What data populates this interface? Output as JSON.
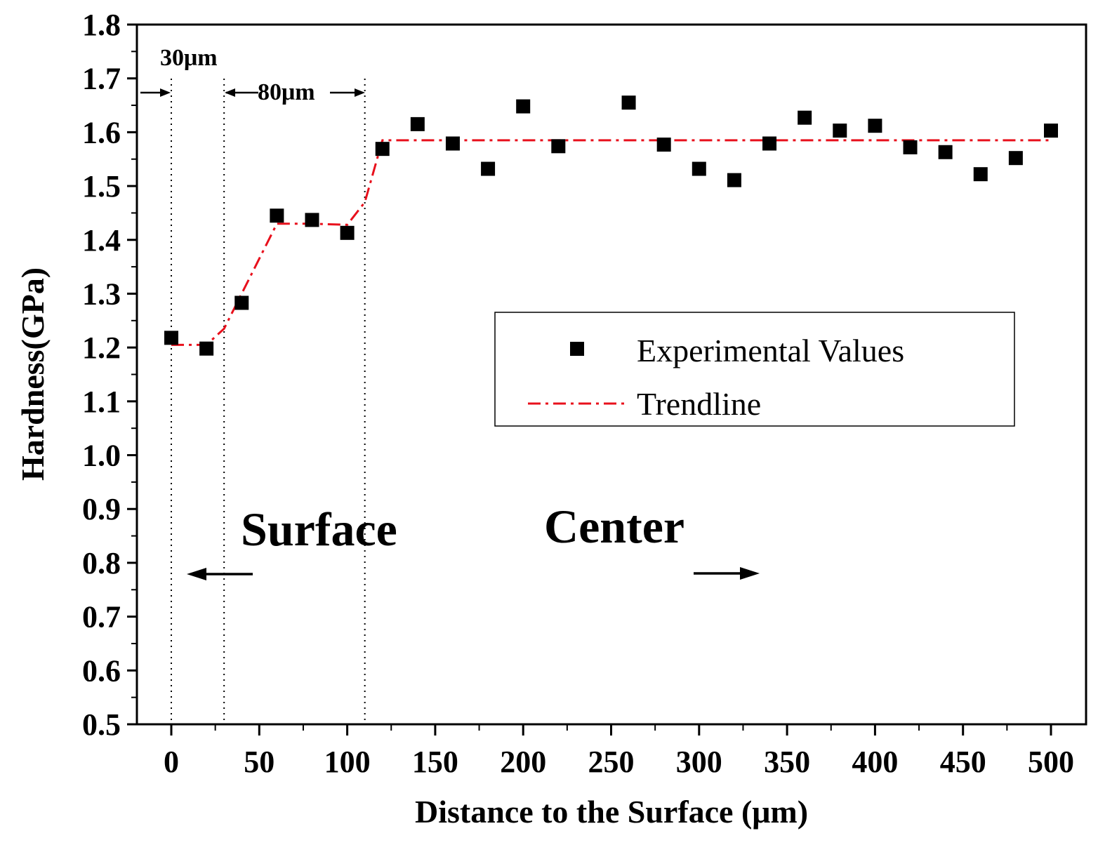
{
  "chart_data": {
    "type": "scatter",
    "xlabel": "Distance to the Surface (μm)",
    "ylabel": "Hardness(GPa)",
    "xlim": [
      -20,
      520
    ],
    "ylim": [
      0.5,
      1.8
    ],
    "x_ticks": [
      0,
      50,
      100,
      150,
      200,
      250,
      300,
      350,
      400,
      450,
      500
    ],
    "x_tick_labels": [
      "0",
      "50",
      "100",
      "150",
      "200",
      "250",
      "300",
      "350",
      "400",
      "450",
      "500"
    ],
    "y_ticks": [
      0.5,
      0.6,
      0.7,
      0.8,
      0.9,
      1.0,
      1.1,
      1.2,
      1.3,
      1.4,
      1.5,
      1.6,
      1.7,
      1.8
    ],
    "y_tick_labels": [
      "0.5",
      "0.6",
      "0.7",
      "0.8",
      "0.9",
      "1.0",
      "1.1",
      "1.2",
      "1.3",
      "1.4",
      "1.5",
      "1.6",
      "1.7",
      "1.8"
    ],
    "series": [
      {
        "name": "Experimental Values",
        "marker": "square",
        "color": "#000000",
        "x": [
          0,
          20,
          40,
          60,
          80,
          100,
          120,
          140,
          160,
          180,
          200,
          220,
          260,
          280,
          300,
          320,
          340,
          360,
          380,
          400,
          420,
          440,
          460,
          480,
          500
        ],
        "y": [
          1.218,
          1.198,
          1.283,
          1.445,
          1.437,
          1.413,
          1.569,
          1.615,
          1.579,
          1.532,
          1.648,
          1.574,
          1.655,
          1.577,
          1.532,
          1.511,
          1.579,
          1.627,
          1.603,
          1.612,
          1.572,
          1.563,
          1.522,
          1.552,
          1.603
        ]
      },
      {
        "name": "Trendline",
        "style": "dash-dot",
        "color": "#e8101c",
        "x": [
          0,
          20,
          30,
          60,
          80,
          100,
          110,
          120,
          500
        ],
        "y": [
          1.205,
          1.205,
          1.235,
          1.43,
          1.43,
          1.428,
          1.47,
          1.585,
          1.585
        ]
      }
    ],
    "reference_lines_x": [
      0,
      30,
      110
    ],
    "annotations": {
      "dim_30": "30μm",
      "dim_80": "80μm",
      "surface": "Surface",
      "center": "Center"
    },
    "legend": {
      "position": "center-right",
      "entries": [
        "Experimental Values",
        "Trendline"
      ]
    }
  }
}
